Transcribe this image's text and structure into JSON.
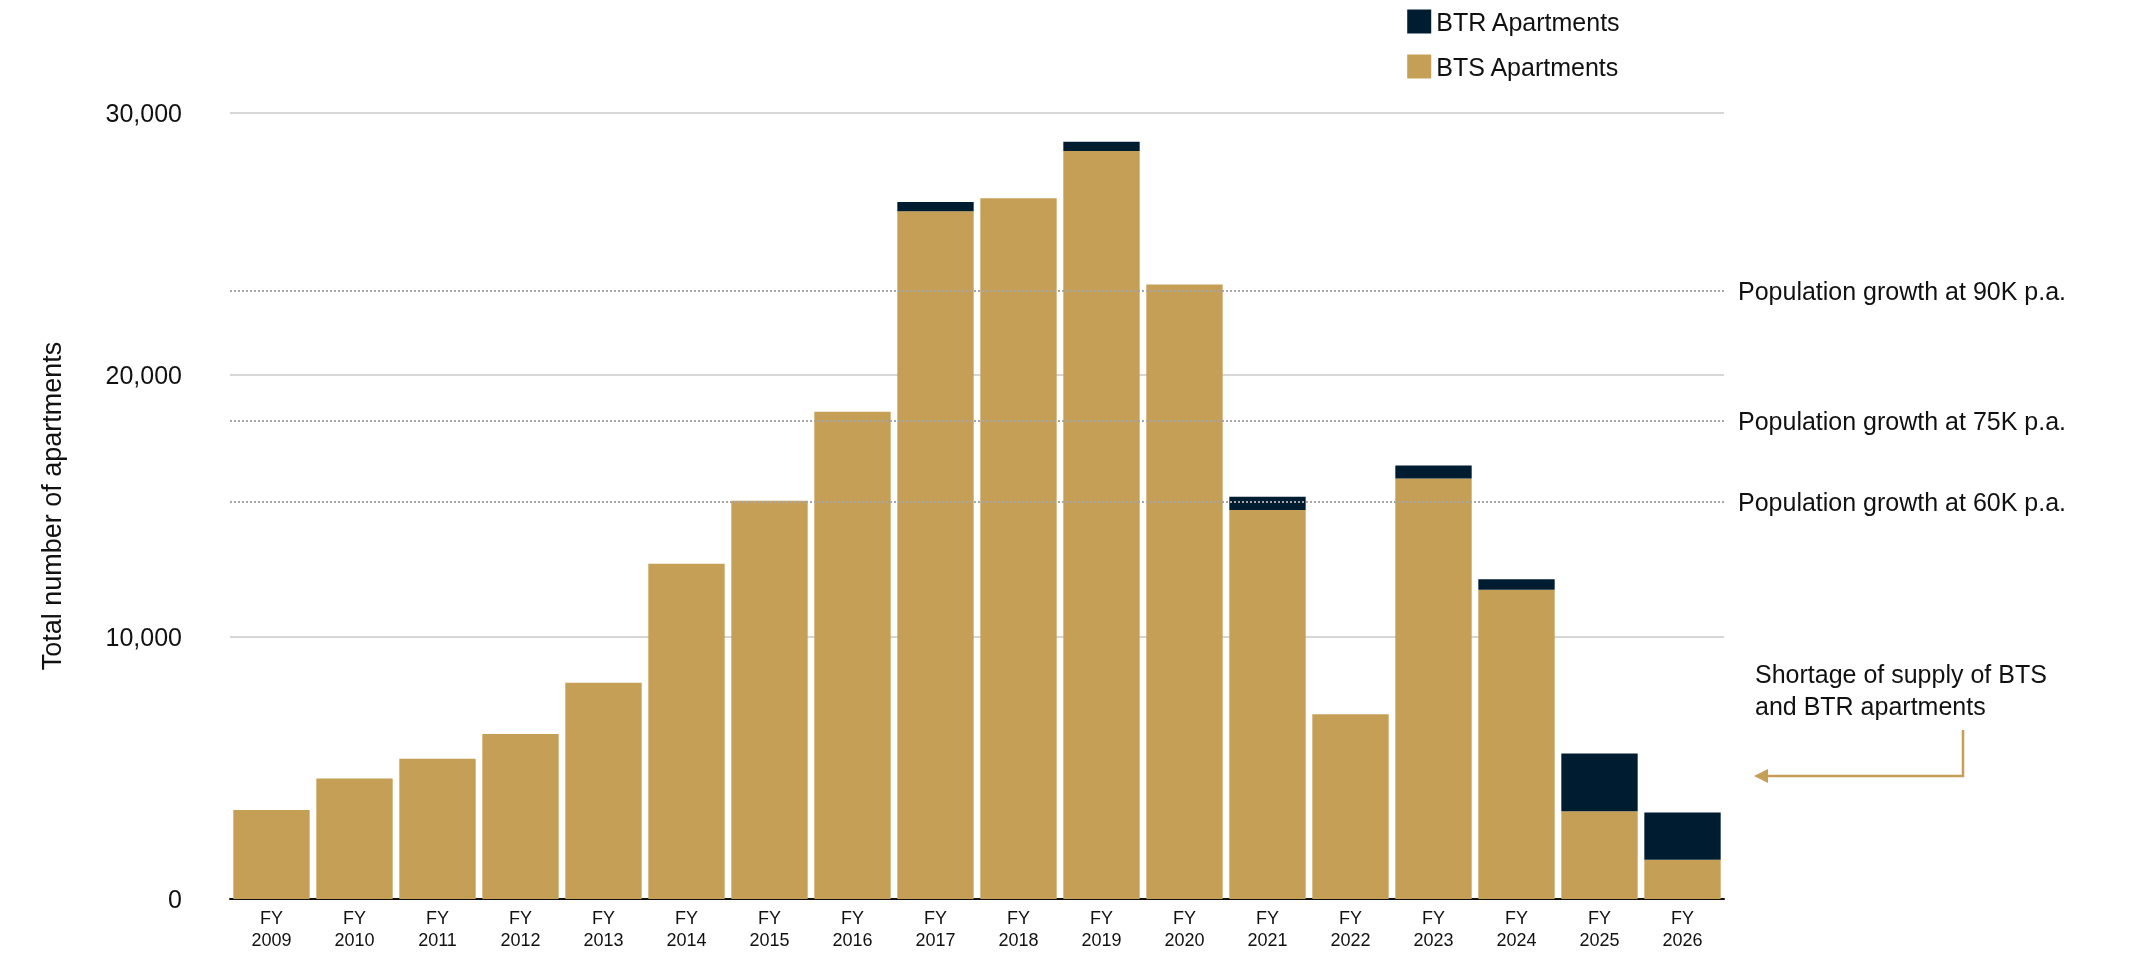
{
  "chart_data": {
    "type": "bar",
    "ylabel": "Total number of apartments",
    "stacked": true,
    "categories": [
      "FY 2009",
      "FY 2010",
      "FY 2011",
      "FY 2012",
      "FY 2013",
      "FY 2014",
      "FY 2015",
      "FY 2016",
      "FY 2017",
      "FY 2018",
      "FY 2019",
      "FY 2020",
      "FY 2021",
      "FY 2022",
      "FY 2023",
      "FY 2024",
      "FY 2025",
      "FY 2026"
    ],
    "series": [
      {
        "name": "BTS Apartments",
        "color": "#c69f56",
        "values": [
          3400,
          4600,
          5350,
          6300,
          8250,
          12800,
          15200,
          18600,
          26250,
          26750,
          28550,
          23450,
          14850,
          7050,
          16050,
          11800,
          3350,
          1500
        ]
      },
      {
        "name": "BTR Apartments",
        "color": "#001c30",
        "values": [
          0,
          0,
          0,
          0,
          0,
          0,
          0,
          0,
          350,
          0,
          350,
          0,
          500,
          0,
          500,
          400,
          2200,
          1800
        ]
      }
    ],
    "ylim": [
      0,
      30000
    ],
    "yticks": [
      0,
      {
        "value": 10000,
        "label": "10,000"
      },
      {
        "value": 20000,
        "label": "20,000"
      },
      {
        "value": 30000,
        "label": "30,000"
      }
    ],
    "grid": "y",
    "legend": "top right",
    "ref_lines": [
      {
        "axis": "y",
        "value": 23200,
        "label": "Population growth at 90K p.a.",
        "color": "#a6a6a6",
        "line_style": "dotted"
      },
      {
        "axis": "y",
        "value": 18250,
        "label": "Population growth at 75K p.a.",
        "color": "#a6a6a6",
        "line_style": "dotted"
      },
      {
        "axis": "y",
        "value": 15150,
        "label": "Population growth at 60K p.a.",
        "color": "#a6a6a6",
        "line_style": "dotted"
      }
    ],
    "annotations": [
      "Shortage of supply of BTS and BTR apartments"
    ]
  }
}
